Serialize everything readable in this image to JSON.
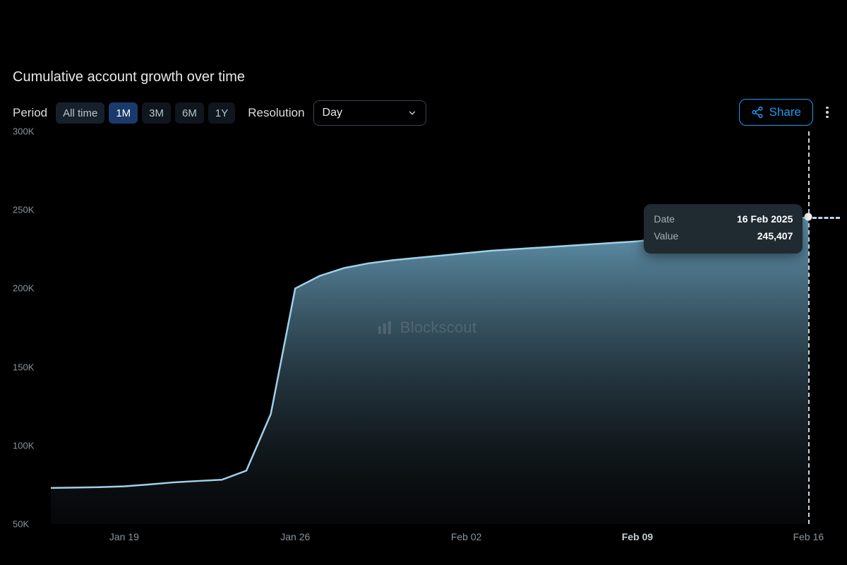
{
  "title": "Cumulative account growth over time",
  "controls": {
    "period_label": "Period",
    "period_options": [
      {
        "label": "All time",
        "active": false
      },
      {
        "label": "1M",
        "active": true
      },
      {
        "label": "3M",
        "active": false
      },
      {
        "label": "6M",
        "active": false
      },
      {
        "label": "1Y",
        "active": false
      }
    ],
    "resolution_label": "Resolution",
    "resolution_value": "Day"
  },
  "share_label": "Share",
  "watermark": "Blockscout",
  "chart": {
    "type": "area",
    "background_color": "#000000",
    "line_color": "#9fd1e8",
    "line_width": 2.5,
    "fill_top_color": "#6ea8c6",
    "fill_bottom_color": "#182026",
    "fill_opacity": 0.92,
    "y": {
      "min": 50000,
      "max": 300000,
      "step": 50000,
      "ticks": [
        "50K",
        "100K",
        "150K",
        "200K",
        "250K",
        "300K"
      ],
      "label_color": "#8a949c",
      "label_fontsize": 13
    },
    "x": {
      "domain_start": "2025-01-16",
      "domain_end": "2025-02-17",
      "ticks": [
        {
          "label": "Jan 19",
          "t": 3,
          "bold": false
        },
        {
          "label": "Jan 26",
          "t": 10,
          "bold": false
        },
        {
          "label": "Feb 02",
          "t": 17,
          "bold": false
        },
        {
          "label": "Feb 09",
          "t": 24,
          "bold": true
        },
        {
          "label": "Feb 16",
          "t": 31,
          "bold": false
        }
      ],
      "label_color": "#8a949c",
      "label_fontsize": 14
    },
    "series": [
      {
        "t": 0,
        "v": 73000
      },
      {
        "t": 1,
        "v": 73200
      },
      {
        "t": 2,
        "v": 73500
      },
      {
        "t": 3,
        "v": 74000
      },
      {
        "t": 4,
        "v": 75200
      },
      {
        "t": 5,
        "v": 76500
      },
      {
        "t": 6,
        "v": 77400
      },
      {
        "t": 7,
        "v": 78200
      },
      {
        "t": 8,
        "v": 84000
      },
      {
        "t": 9,
        "v": 120000
      },
      {
        "t": 10,
        "v": 200000
      },
      {
        "t": 11,
        "v": 208000
      },
      {
        "t": 12,
        "v": 213000
      },
      {
        "t": 13,
        "v": 216000
      },
      {
        "t": 14,
        "v": 218000
      },
      {
        "t": 15,
        "v": 219500
      },
      {
        "t": 16,
        "v": 221000
      },
      {
        "t": 17,
        "v": 222500
      },
      {
        "t": 18,
        "v": 224000
      },
      {
        "t": 19,
        "v": 225000
      },
      {
        "t": 20,
        "v": 226000
      },
      {
        "t": 21,
        "v": 227000
      },
      {
        "t": 22,
        "v": 228000
      },
      {
        "t": 23,
        "v": 229000
      },
      {
        "t": 24,
        "v": 230000
      },
      {
        "t": 25,
        "v": 232000
      },
      {
        "t": 26,
        "v": 234000
      },
      {
        "t": 27,
        "v": 236500
      },
      {
        "t": 28,
        "v": 238500
      },
      {
        "t": 29,
        "v": 241000
      },
      {
        "t": 30,
        "v": 243500
      },
      {
        "t": 31,
        "v": 245407
      }
    ],
    "hover": {
      "t": 31,
      "date_label": "Date",
      "date_value": "16 Feb 2025",
      "value_label": "Value",
      "value_text": "245,407",
      "crosshair_color": "#cfd6db",
      "dot_color": "#ffffff",
      "tooltip_bg": "#1f2a31"
    },
    "t_min": 0,
    "t_max": 32
  }
}
